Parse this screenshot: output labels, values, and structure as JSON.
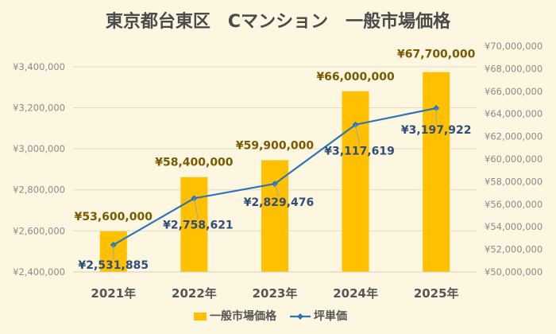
{
  "chart_data": {
    "type": "bar",
    "title": "東京都台東区　Cマンション　一般市場価格",
    "categories": [
      "2021年",
      "2022年",
      "2023年",
      "2024年",
      "2025年"
    ],
    "series": [
      {
        "name": "一般市場価格",
        "kind": "bar",
        "axis": "right",
        "color": "#ffc000",
        "values": [
          53600000,
          58400000,
          59900000,
          66000000,
          67700000
        ],
        "labels": [
          "¥53,600,000",
          "¥58,400,000",
          "¥59,900,000",
          "¥66,000,000",
          "¥67,700,000"
        ]
      },
      {
        "name": "坪単価",
        "kind": "line",
        "axis": "left",
        "color": "#2e75b6",
        "values": [
          2531885,
          2758621,
          2829476,
          3117619,
          3197922
        ],
        "labels": [
          "¥2,531,885",
          "¥2,758,621",
          "¥2,829,476",
          "¥3,117,619",
          "¥3,197,922"
        ]
      }
    ],
    "left_axis": {
      "ylim": [
        2400000,
        3500000
      ],
      "ticks": [
        2400000,
        2600000,
        2800000,
        3000000,
        3200000,
        3400000
      ],
      "tick_labels": [
        "¥2,400,000",
        "¥2,600,000",
        "¥2,800,000",
        "¥3,000,000",
        "¥3,200,000",
        "¥3,400,000"
      ]
    },
    "right_axis": {
      "ylim": [
        50000000,
        70000000
      ],
      "ticks": [
        50000000,
        52000000,
        54000000,
        56000000,
        58000000,
        60000000,
        62000000,
        64000000,
        66000000,
        68000000,
        70000000
      ],
      "tick_labels": [
        "¥50,000,000",
        "¥52,000,000",
        "¥54,000,000",
        "¥56,000,000",
        "¥58,000,000",
        "¥60,000,000",
        "¥62,000,000",
        "¥64,000,000",
        "¥66,000,000",
        "¥68,000,000",
        "¥70,000,000"
      ]
    },
    "grid": true,
    "legend": "bottom"
  },
  "colors": {
    "background": "#fdf6e1",
    "grid": "#e2dccb",
    "bar_label": "#7a5a00",
    "line_label": "#2e4d7a",
    "leader": "#8fa7c4"
  }
}
